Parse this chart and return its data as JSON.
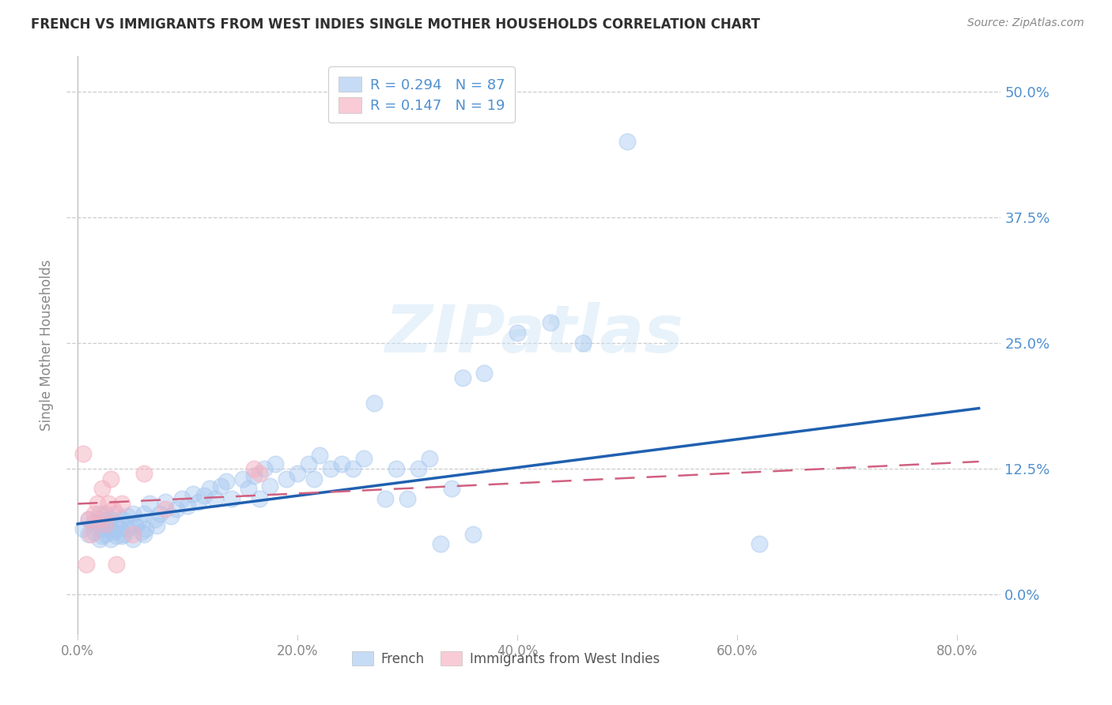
{
  "title": "FRENCH VS IMMIGRANTS FROM WEST INDIES SINGLE MOTHER HOUSEHOLDS CORRELATION CHART",
  "source": "Source: ZipAtlas.com",
  "ylabel": "Single Mother Households",
  "xlabel_ticks": [
    "0.0%",
    "20.0%",
    "40.0%",
    "60.0%",
    "80.0%"
  ],
  "xlabel_vals": [
    0.0,
    0.2,
    0.4,
    0.6,
    0.8
  ],
  "ytick_labels": [
    "0.0%",
    "12.5%",
    "25.0%",
    "37.5%",
    "50.0%"
  ],
  "ytick_vals": [
    0.0,
    0.125,
    0.25,
    0.375,
    0.5
  ],
  "xlim": [
    -0.01,
    0.84
  ],
  "ylim": [
    -0.04,
    0.535
  ],
  "legend_label1": "French",
  "legend_label2": "Immigrants from West Indies",
  "french_color": "#a8c8f0",
  "immigrant_color": "#f5b0c0",
  "french_line_color": "#2060b0",
  "immigrant_line_color": "#d06080",
  "watermark_text": "ZIPatlas",
  "title_color": "#303030",
  "axis_label_color": "#5090d0",
  "background_color": "#ffffff",
  "french_R": 0.294,
  "french_N": 87,
  "immigrant_R": 0.147,
  "immigrant_N": 19,
  "french_line_x0": 0.0,
  "french_line_y0": 0.07,
  "french_line_x1": 0.82,
  "french_line_y1": 0.185,
  "immigrant_line_x0": 0.0,
  "immigrant_line_y0": 0.09,
  "immigrant_line_x1": 0.82,
  "immigrant_line_y1": 0.132,
  "french_scatter_x": [
    0.005,
    0.01,
    0.01,
    0.015,
    0.015,
    0.015,
    0.02,
    0.02,
    0.02,
    0.022,
    0.022,
    0.025,
    0.025,
    0.025,
    0.025,
    0.028,
    0.03,
    0.03,
    0.03,
    0.032,
    0.035,
    0.035,
    0.035,
    0.038,
    0.04,
    0.04,
    0.042,
    0.045,
    0.045,
    0.048,
    0.05,
    0.05,
    0.052,
    0.055,
    0.058,
    0.06,
    0.06,
    0.062,
    0.065,
    0.07,
    0.072,
    0.075,
    0.08,
    0.085,
    0.09,
    0.095,
    0.1,
    0.105,
    0.11,
    0.115,
    0.12,
    0.125,
    0.13,
    0.135,
    0.14,
    0.15,
    0.155,
    0.16,
    0.165,
    0.17,
    0.175,
    0.18,
    0.19,
    0.2,
    0.21,
    0.215,
    0.22,
    0.23,
    0.24,
    0.25,
    0.26,
    0.27,
    0.28,
    0.29,
    0.3,
    0.31,
    0.32,
    0.33,
    0.34,
    0.35,
    0.36,
    0.37,
    0.4,
    0.43,
    0.46,
    0.5,
    0.62
  ],
  "french_scatter_y": [
    0.065,
    0.06,
    0.075,
    0.062,
    0.068,
    0.072,
    0.055,
    0.07,
    0.08,
    0.065,
    0.058,
    0.06,
    0.068,
    0.074,
    0.08,
    0.07,
    0.055,
    0.065,
    0.075,
    0.062,
    0.058,
    0.07,
    0.08,
    0.065,
    0.058,
    0.075,
    0.06,
    0.065,
    0.078,
    0.07,
    0.055,
    0.08,
    0.068,
    0.072,
    0.062,
    0.06,
    0.08,
    0.065,
    0.09,
    0.075,
    0.068,
    0.08,
    0.092,
    0.078,
    0.085,
    0.095,
    0.088,
    0.1,
    0.092,
    0.098,
    0.105,
    0.095,
    0.108,
    0.112,
    0.095,
    0.115,
    0.105,
    0.118,
    0.095,
    0.125,
    0.108,
    0.13,
    0.115,
    0.12,
    0.13,
    0.115,
    0.138,
    0.125,
    0.13,
    0.125,
    0.135,
    0.19,
    0.095,
    0.125,
    0.095,
    0.125,
    0.135,
    0.05,
    0.105,
    0.215,
    0.06,
    0.22,
    0.26,
    0.27,
    0.25,
    0.45,
    0.05
  ],
  "immigrant_scatter_x": [
    0.005,
    0.008,
    0.01,
    0.012,
    0.015,
    0.018,
    0.02,
    0.022,
    0.025,
    0.028,
    0.03,
    0.032,
    0.035,
    0.04,
    0.05,
    0.06,
    0.08,
    0.16,
    0.165
  ],
  "immigrant_scatter_y": [
    0.14,
    0.03,
    0.075,
    0.06,
    0.08,
    0.09,
    0.075,
    0.105,
    0.07,
    0.09,
    0.115,
    0.085,
    0.03,
    0.09,
    0.06,
    0.12,
    0.085,
    0.125,
    0.12
  ]
}
